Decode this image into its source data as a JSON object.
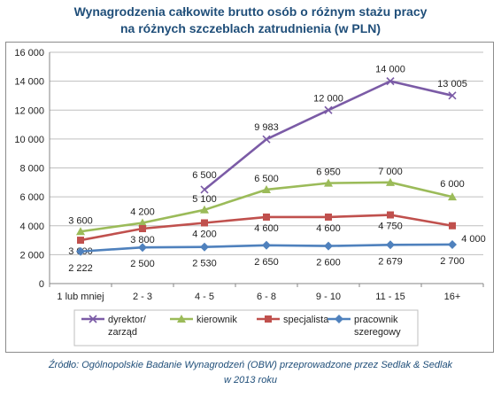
{
  "title": {
    "line1": "Wynagrodzenia całkowite brutto osób o różnym stażu pracy",
    "line2": "na różnych szczeblach zatrudnienia (w PLN)"
  },
  "source": {
    "line1": "Źródło: Ogólnopolskie Badanie Wynagrodzeń (OBW) przeprowadzone  przez Sedlak & Sedlak",
    "line2": "w 2013 roku"
  },
  "colors": {
    "title": "#1f4e79",
    "gridline": "#bfbfbf",
    "dyrektor": "#7b5ba6",
    "kierownik": "#9bbb59",
    "specjalista": "#c0504d",
    "pracownik": "#4f81bd"
  },
  "chart_data": {
    "type": "line",
    "title": "Wynagrodzenia całkowite brutto osób o różnym stażu pracy na różnych szczeblach zatrudnienia (w PLN)",
    "categories": [
      "1 lub mniej",
      "2 - 3",
      "4 - 5",
      "6 - 8",
      "9 - 10",
      "11 - 15",
      "16+"
    ],
    "ylim": [
      0,
      16000
    ],
    "yticks": [
      0,
      2000,
      4000,
      6000,
      8000,
      10000,
      12000,
      14000,
      16000
    ],
    "ytick_labels": [
      "0",
      "2 000",
      "4 000",
      "6 000",
      "8 000",
      "10 000",
      "12 000",
      "14 000",
      "16 000"
    ],
    "grid": true,
    "legend_position": "bottom",
    "series": [
      {
        "name": "dyrektor/ zarząd",
        "legend_lines": [
          "dyrektor/",
          "zarząd"
        ],
        "marker": "x",
        "color": "#7b5ba6",
        "values": [
          null,
          null,
          6500,
          9983,
          12000,
          14000,
          13005
        ],
        "labels": [
          null,
          null,
          "6 500",
          "9 983",
          "12 000",
          "14 000",
          "13 005"
        ]
      },
      {
        "name": "kierownik",
        "legend_lines": [
          "kierownik"
        ],
        "marker": "triangle",
        "color": "#9bbb59",
        "values": [
          3600,
          4200,
          5100,
          6500,
          6950,
          7000,
          6000
        ],
        "labels": [
          "3 600",
          "4 200",
          "5 100",
          "6 500",
          "6 950",
          "7 000",
          "6 000"
        ]
      },
      {
        "name": "specjalista",
        "legend_lines": [
          "specjalista"
        ],
        "marker": "square",
        "color": "#c0504d",
        "values": [
          3000,
          3800,
          4200,
          4600,
          4600,
          4750,
          4000
        ],
        "labels": [
          "3 000",
          "3 800",
          "4 200",
          "4 600",
          "4 600",
          "4 750",
          "4 000"
        ]
      },
      {
        "name": "pracownik szeregowy",
        "legend_lines": [
          "pracownik",
          "szeregowy"
        ],
        "marker": "diamond",
        "color": "#4f81bd",
        "values": [
          2222,
          2500,
          2530,
          2650,
          2600,
          2679,
          2700
        ],
        "labels": [
          "2 222",
          "2 500",
          "2 530",
          "2 650",
          "2 600",
          "2 679",
          "2 700"
        ]
      }
    ]
  }
}
